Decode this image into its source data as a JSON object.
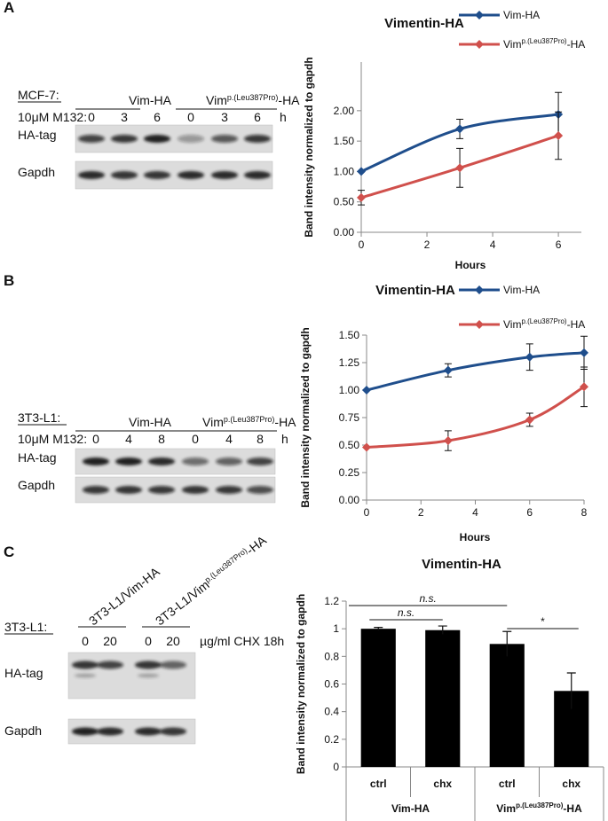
{
  "panel_labels": [
    "A",
    "B",
    "C"
  ],
  "blots": [
    {
      "cell_line": "MCF-7:",
      "groups": [
        [
          "Vim-HA"
        ],
        [
          "Vim",
          "p.(Leu387Pro)",
          "-HA"
        ]
      ],
      "treatment": "10μM M132:",
      "lanes": [
        "0",
        "3",
        "6",
        "0",
        "3",
        "6"
      ],
      "unit": "h",
      "rows": [
        "HA-tag",
        "Gapdh"
      ]
    },
    {
      "cell_line": "3T3-L1:",
      "groups": [
        [
          "Vim-HA"
        ],
        [
          "Vim",
          "p.(Leu387Pro)",
          "-HA"
        ]
      ],
      "treatment": "10μM M132:",
      "lanes": [
        "0",
        "4",
        "8",
        "0",
        "4",
        "8"
      ],
      "unit": "h",
      "rows": [
        "HA-tag",
        "Gapdh"
      ]
    },
    {
      "cell_line": "3T3-L1:",
      "groups": [
        [
          "3T3-L1/Vim-HA"
        ],
        [
          "3T3-L1/Vim",
          "p.(Leu387Pro)",
          "-HA"
        ]
      ],
      "treatment": "µg/ml CHX 18h",
      "lanes": [
        "0",
        "20",
        "0",
        "20"
      ],
      "rows": [
        "HA-tag",
        "Gapdh"
      ]
    }
  ],
  "chart_data": [
    {
      "type": "line",
      "title": "Vimentin-HA",
      "x_label": "Hours",
      "y_label": "Band intensity normalized to gapdh",
      "x": [
        0,
        3,
        6
      ],
      "xlim": [
        0,
        6.7
      ],
      "xticks": [
        0,
        2,
        4,
        6
      ],
      "ylim": [
        0,
        2.8
      ],
      "yticks": [
        {
          "value": 0,
          "label": "0.00"
        },
        {
          "value": 0.5,
          "label": "0.50"
        },
        {
          "value": 1,
          "label": "1.00"
        },
        {
          "value": 1.5,
          "label": "1.50"
        },
        {
          "value": 2,
          "label": "2.00"
        }
      ],
      "series": [
        {
          "name": [
            "Vim-HA"
          ],
          "color": "#1f4e8c",
          "values": [
            1.0,
            1.7,
            1.94
          ],
          "errors": [
            0,
            0.16,
            0.36
          ]
        },
        {
          "name": [
            "Vim",
            "p.(Leu387Pro)",
            "-HA"
          ],
          "color": "#d0504c",
          "values": [
            0.57,
            1.06,
            1.59
          ],
          "errors": [
            0.12,
            0.32,
            0.39
          ]
        }
      ]
    },
    {
      "type": "line",
      "title": "Vimentin-HA",
      "x_label": "Hours",
      "y_label": "Band intensity normalized to gapdh",
      "x": [
        0,
        3,
        6,
        8
      ],
      "xlim": [
        0,
        8
      ],
      "xticks": [
        0,
        2,
        4,
        6,
        8
      ],
      "ylim": [
        0,
        1.5
      ],
      "yticks": [
        {
          "value": 0,
          "label": "0.00"
        },
        {
          "value": 0.25,
          "label": "0.25"
        },
        {
          "value": 0.5,
          "label": "0.50"
        },
        {
          "value": 0.75,
          "label": "0.75"
        },
        {
          "value": 1,
          "label": "1.00"
        },
        {
          "value": 1.25,
          "label": "1.25"
        },
        {
          "value": 1.5,
          "label": "1.50"
        }
      ],
      "series": [
        {
          "name": [
            "Vim-HA"
          ],
          "color": "#1f4e8c",
          "values": [
            1.0,
            1.18,
            1.3,
            1.34
          ],
          "errors": [
            0,
            0.06,
            0.12,
            0.15
          ]
        },
        {
          "name": [
            "Vim",
            "p.(Leu387Pro)",
            "-HA"
          ],
          "color": "#d0504c",
          "values": [
            0.48,
            0.54,
            0.73,
            1.03
          ],
          "errors": [
            0,
            0.09,
            0.06,
            0.18
          ]
        }
      ]
    },
    {
      "type": "bar",
      "title": "Vimentin-HA",
      "y_label": "Band intensity normalized to gapdh",
      "categories": [
        "ctrl",
        "chx",
        "ctrl",
        "chx"
      ],
      "groups": [
        [
          "Vim-HA"
        ],
        [
          "Vim",
          "p.(Leu387Pro)",
          "-HA"
        ]
      ],
      "values": [
        1.0,
        0.99,
        0.89,
        0.55
      ],
      "errors": [
        0.01,
        0.03,
        0.09,
        0.13
      ],
      "color": "#000000",
      "ylim": [
        0,
        1.2
      ],
      "yticks": [
        0,
        0.2,
        0.4,
        0.6,
        0.8,
        1,
        1.2
      ],
      "annotations": [
        "n.s.",
        "n.s.",
        "*"
      ]
    }
  ]
}
